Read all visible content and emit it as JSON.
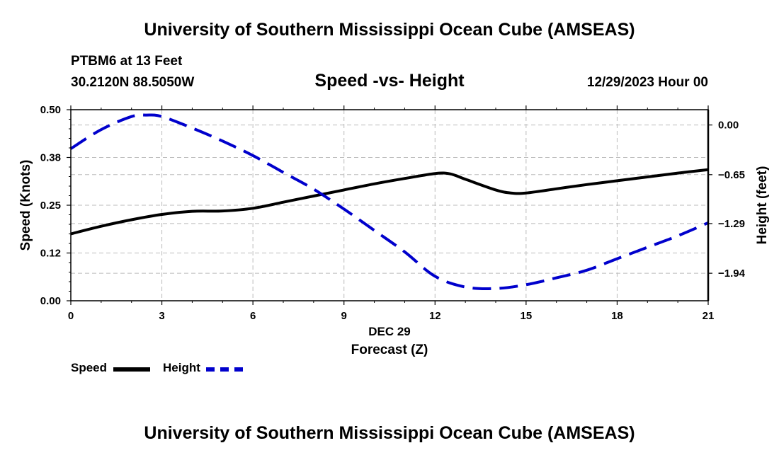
{
  "header": {
    "title": "University of Southern Mississippi Ocean Cube (AMSEAS)",
    "station": "PTBM6 at 13 Feet",
    "coords": "30.2120N  88.5050W",
    "subtitle": "Speed -vs- Height",
    "datetime": "12/29/2023 Hour 00"
  },
  "footer": {
    "title": "University of Southern Mississippi Ocean Cube (AMSEAS)"
  },
  "legend": {
    "speed_label": "Speed",
    "height_label": "Height"
  },
  "colors": {
    "speed": "#000000",
    "height": "#0000cc",
    "grid": "#bbbbbb"
  },
  "chart_data": {
    "type": "line",
    "title": "Speed -vs- Height",
    "xlabel": "Forecast (Z)",
    "xsublabel": "DEC 29",
    "ylabel": "Speed (Knots)",
    "y2label": "Height (feet)",
    "xlim": [
      0,
      21
    ],
    "ylim": [
      0,
      0.5
    ],
    "y2lim": [
      -2.3,
      0.2
    ],
    "xticks": [
      0,
      3,
      6,
      9,
      12,
      15,
      18,
      21
    ],
    "xtick_labels": [
      "0",
      "3",
      "6",
      "9",
      "12",
      "15",
      "18",
      "21"
    ],
    "yticks": [
      0,
      0.125,
      0.25,
      0.375,
      0.5
    ],
    "ytick_labels": [
      "0.00",
      "0.12",
      "0.25",
      "0.38",
      "0.50"
    ],
    "y2ticks": [
      0,
      -0.65,
      -1.29,
      -1.94
    ],
    "y2tick_labels": [
      "0.00",
      "−0.65",
      "−1.29",
      "−1.94"
    ],
    "grid": true,
    "series": [
      {
        "name": "Speed",
        "axis": "left",
        "style": "solid",
        "x": [
          0,
          1,
          2,
          3,
          4,
          5,
          6,
          7,
          8,
          9,
          10,
          11,
          12,
          12.5,
          13,
          14,
          14.5,
          15,
          16,
          17,
          18,
          19,
          20,
          21
        ],
        "values": [
          0.175,
          0.195,
          0.212,
          0.226,
          0.234,
          0.235,
          0.242,
          0.258,
          0.274,
          0.29,
          0.306,
          0.32,
          0.333,
          0.332,
          0.318,
          0.29,
          0.282,
          0.282,
          0.293,
          0.304,
          0.314,
          0.324,
          0.334,
          0.343
        ]
      },
      {
        "name": "Height",
        "axis": "right",
        "style": "dashed",
        "x": [
          0,
          1,
          2,
          2.5,
          3,
          4,
          5,
          6,
          7,
          8,
          9,
          10,
          11,
          12,
          13,
          14,
          15,
          16,
          17,
          18,
          19,
          20,
          21
        ],
        "values": [
          -0.31,
          -0.06,
          0.11,
          0.13,
          0.11,
          -0.04,
          -0.21,
          -0.4,
          -0.62,
          -0.84,
          -1.1,
          -1.38,
          -1.66,
          -1.98,
          -2.12,
          -2.14,
          -2.09,
          -2.0,
          -1.9,
          -1.75,
          -1.6,
          -1.45,
          -1.28
        ]
      }
    ]
  }
}
